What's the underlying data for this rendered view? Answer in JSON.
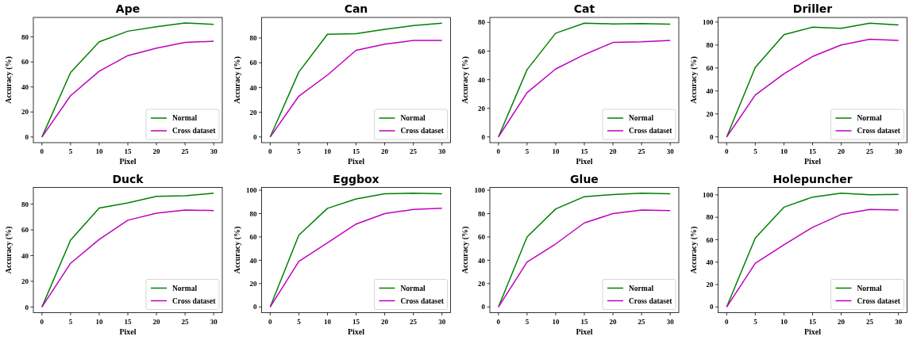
{
  "chart_data": [
    {
      "type": "line",
      "title": "Ape",
      "xlabel": "Pixel",
      "ylabel": "Accuracy (%)",
      "x": [
        0,
        5,
        10,
        15,
        20,
        25,
        30
      ],
      "xlim": [
        -1.5,
        31.5
      ],
      "xticks": [
        0,
        5,
        10,
        15,
        20,
        25,
        30
      ],
      "ylim": [
        -4.5,
        95.5
      ],
      "yticks": [
        0,
        20,
        40,
        60,
        80
      ],
      "legend": "bottom right",
      "series": [
        {
          "name": "Normal",
          "color": "#008000",
          "values": [
            0,
            51.5,
            76,
            84.5,
            88,
            91,
            90
          ]
        },
        {
          "name": "Cross dataset",
          "color": "#bf00bf",
          "values": [
            0,
            33,
            52.5,
            65,
            71,
            75.5,
            76.5
          ]
        }
      ]
    },
    {
      "type": "line",
      "title": "Can",
      "xlabel": "Pixel",
      "ylabel": "Accuracy (%)",
      "x": [
        0,
        5,
        10,
        15,
        20,
        25,
        30
      ],
      "xlim": [
        -1.5,
        31.5
      ],
      "xticks": [
        0,
        5,
        10,
        15,
        20,
        25,
        30
      ],
      "ylim": [
        -4.6,
        96.6
      ],
      "yticks": [
        0,
        20,
        40,
        60,
        80
      ],
      "legend": "bottom right",
      "series": [
        {
          "name": "Normal",
          "color": "#008000",
          "values": [
            0,
            52.5,
            83,
            83.5,
            87,
            90,
            92
          ]
        },
        {
          "name": "Cross dataset",
          "color": "#bf00bf",
          "values": [
            0,
            33,
            50,
            70,
            75,
            78,
            78
          ]
        }
      ]
    },
    {
      "type": "line",
      "title": "Cat",
      "xlabel": "Pixel",
      "ylabel": "Accuracy (%)",
      "x": [
        0,
        5,
        10,
        15,
        20,
        25,
        30
      ],
      "xlim": [
        -1.5,
        31.5
      ],
      "xticks": [
        0,
        5,
        10,
        15,
        20,
        25,
        30
      ],
      "ylim": [
        -4,
        83.5
      ],
      "yticks": [
        0,
        20,
        40,
        60,
        80
      ],
      "legend": "bottom right",
      "series": [
        {
          "name": "Normal",
          "color": "#008000",
          "values": [
            0,
            47,
            72.5,
            79.5,
            79,
            79.2,
            78.8
          ]
        },
        {
          "name": "Cross dataset",
          "color": "#bf00bf",
          "values": [
            0,
            31,
            47.5,
            57.5,
            66,
            66.5,
            67.5
          ]
        }
      ]
    },
    {
      "type": "line",
      "title": "Driller",
      "xlabel": "Pixel",
      "ylabel": "Accuracy (%)",
      "x": [
        0,
        5,
        10,
        15,
        20,
        25,
        30
      ],
      "xlim": [
        -1.5,
        31.5
      ],
      "xticks": [
        0,
        5,
        10,
        15,
        20,
        25,
        30
      ],
      "ylim": [
        -5,
        104
      ],
      "yticks": [
        0,
        20,
        40,
        60,
        80,
        100
      ],
      "legend": "bottom right",
      "series": [
        {
          "name": "Normal",
          "color": "#008000",
          "values": [
            0,
            60.5,
            89,
            95.5,
            94.5,
            99,
            97.5
          ]
        },
        {
          "name": "Cross dataset",
          "color": "#bf00bf",
          "values": [
            0,
            36.5,
            55,
            70,
            80,
            85,
            84
          ]
        }
      ]
    },
    {
      "type": "line",
      "title": "Duck",
      "xlabel": "Pixel",
      "ylabel": "Accuracy (%)",
      "x": [
        0,
        5,
        10,
        15,
        20,
        25,
        30
      ],
      "xlim": [
        -1.5,
        31.5
      ],
      "xticks": [
        0,
        5,
        10,
        15,
        20,
        25,
        30
      ],
      "ylim": [
        -4.4,
        93
      ],
      "yticks": [
        0,
        20,
        40,
        60,
        80
      ],
      "legend": "bottom right",
      "series": [
        {
          "name": "Normal",
          "color": "#008000",
          "values": [
            0,
            52,
            77,
            81,
            86,
            86.5,
            88.5
          ]
        },
        {
          "name": "Cross dataset",
          "color": "#bf00bf",
          "values": [
            0,
            34,
            52.5,
            67.5,
            73,
            75.5,
            75
          ]
        }
      ]
    },
    {
      "type": "line",
      "title": "Eggbox",
      "xlabel": "Pixel",
      "ylabel": "Accuracy (%)",
      "x": [
        0,
        5,
        10,
        15,
        20,
        25,
        30
      ],
      "xlim": [
        -1.5,
        31.5
      ],
      "xticks": [
        0,
        5,
        10,
        15,
        20,
        25,
        30
      ],
      "ylim": [
        -4.9,
        102.4
      ],
      "yticks": [
        0,
        20,
        40,
        60,
        80,
        100
      ],
      "legend": "bottom right",
      "series": [
        {
          "name": "Normal",
          "color": "#008000",
          "values": [
            0,
            61.5,
            84.5,
            92.5,
            97,
            97.5,
            97
          ]
        },
        {
          "name": "Cross dataset",
          "color": "#bf00bf",
          "values": [
            0,
            39,
            55,
            71,
            80,
            83.5,
            84.5
          ]
        }
      ]
    },
    {
      "type": "line",
      "title": "Glue",
      "xlabel": "Pixel",
      "ylabel": "Accuracy (%)",
      "x": [
        0,
        5,
        10,
        15,
        20,
        25,
        30
      ],
      "xlim": [
        -1.5,
        31.5
      ],
      "xticks": [
        0,
        5,
        10,
        15,
        20,
        25,
        30
      ],
      "ylim": [
        -4.9,
        102.4
      ],
      "yticks": [
        0,
        20,
        40,
        60,
        80,
        100
      ],
      "legend": "bottom right",
      "series": [
        {
          "name": "Normal",
          "color": "#008000",
          "values": [
            0,
            60,
            84,
            94.5,
            96.3,
            97.5,
            97
          ]
        },
        {
          "name": "Cross dataset",
          "color": "#bf00bf",
          "values": [
            0,
            38.5,
            54,
            72,
            80,
            83,
            82.5
          ]
        }
      ]
    },
    {
      "type": "line",
      "title": "Holepuncher",
      "xlabel": "Pixel",
      "ylabel": "Accuracy (%)",
      "x": [
        0,
        5,
        10,
        15,
        20,
        25,
        30
      ],
      "xlim": [
        -1.5,
        31.5
      ],
      "xticks": [
        0,
        5,
        10,
        15,
        20,
        25,
        30
      ],
      "ylim": [
        -5.1,
        106.6
      ],
      "yticks": [
        0,
        20,
        40,
        60,
        80,
        100
      ],
      "legend": "bottom right",
      "series": [
        {
          "name": "Normal",
          "color": "#008000",
          "values": [
            0,
            61.5,
            89,
            98,
            101.5,
            100,
            100.5
          ]
        },
        {
          "name": "Cross dataset",
          "color": "#bf00bf",
          "values": [
            0,
            39,
            55.5,
            71,
            82.5,
            87,
            86.5
          ]
        }
      ]
    }
  ]
}
